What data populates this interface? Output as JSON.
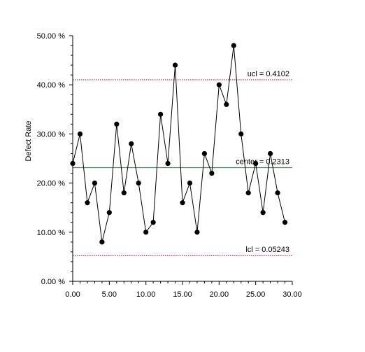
{
  "chart_data": {
    "type": "line",
    "title": "",
    "xlabel": "",
    "ylabel": "Defect Rate",
    "xlim": [
      0,
      30
    ],
    "ylim": [
      0,
      0.5
    ],
    "x_ticks": [
      0,
      5,
      10,
      15,
      20,
      25,
      30
    ],
    "x_tick_labels": [
      "0.00",
      "5.00",
      "10.00",
      "15.00",
      "20.00",
      "25.00",
      "30.00"
    ],
    "y_ticks": [
      0,
      0.1,
      0.2,
      0.3,
      0.4,
      0.5
    ],
    "y_tick_labels": [
      "0.00 %",
      "10.00 %",
      "20.00 %",
      "30.00 %",
      "40.00 %",
      "50.00 %"
    ],
    "grid": false,
    "series": [
      {
        "x": [
          0,
          1,
          2,
          3,
          4,
          5,
          6,
          7,
          8,
          9,
          10,
          11,
          12,
          13,
          14,
          15,
          16,
          17,
          18,
          19,
          20,
          21,
          22,
          23,
          24,
          25,
          26,
          27,
          28,
          29
        ],
        "values": [
          0.24,
          0.3,
          0.16,
          0.2,
          0.08,
          0.14,
          0.32,
          0.18,
          0.28,
          0.2,
          0.1,
          0.12,
          0.34,
          0.24,
          0.44,
          0.16,
          0.2,
          0.1,
          0.26,
          0.22,
          0.4,
          0.36,
          0.48,
          0.3,
          0.18,
          0.24,
          0.14,
          0.26,
          0.18,
          0.12
        ],
        "color": "#000000"
      }
    ],
    "control_lines": [
      {
        "label": "ucl = 0.4102",
        "value": 0.4102,
        "color": "#c0001a",
        "style": "dotted"
      },
      {
        "label": "center = 0.2313",
        "value": 0.2313,
        "color": "#2e7d32",
        "style": "solid"
      },
      {
        "label": "lcl = 0.05243",
        "value": 0.05243,
        "color": "#c0001a",
        "style": "dotted"
      }
    ]
  }
}
